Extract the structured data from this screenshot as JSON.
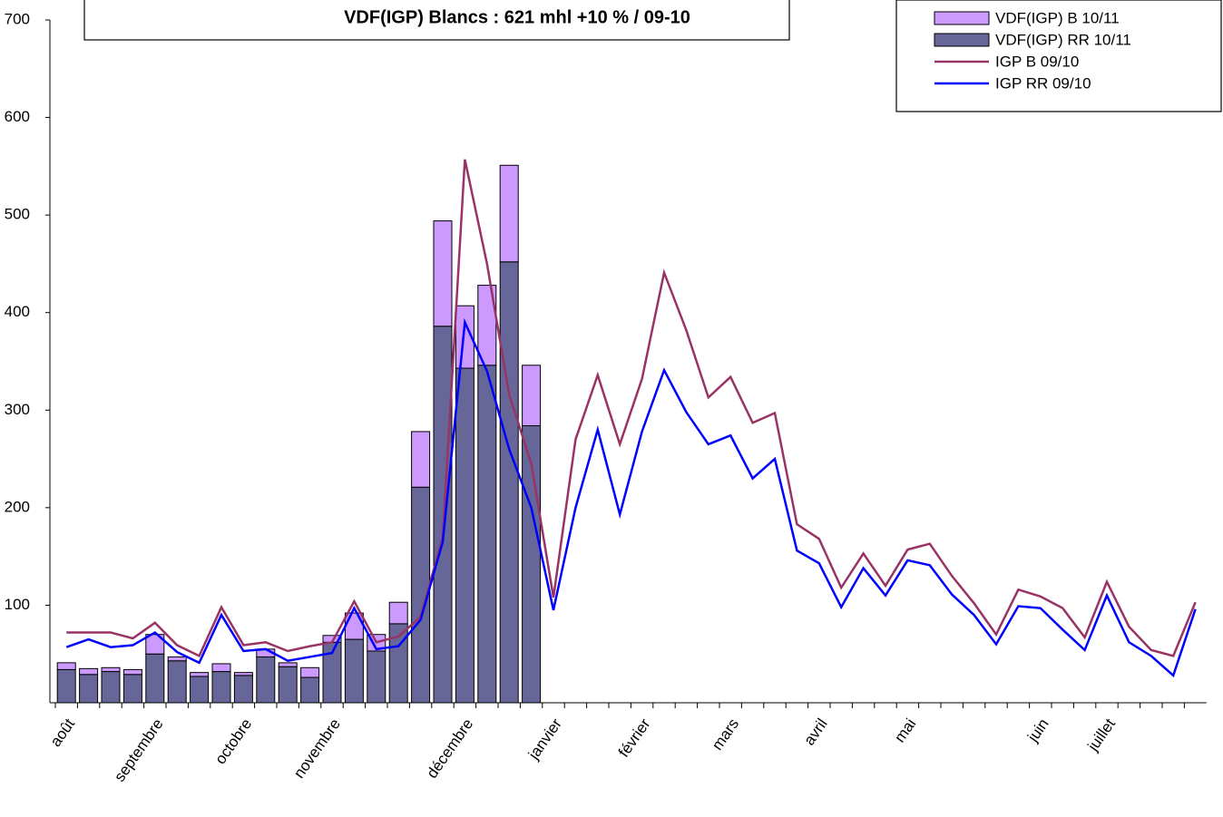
{
  "chart_data": {
    "type": "bar-line",
    "title": "VDF(IGP) Blancs : 621 mhl +10 % / 09-10",
    "categories": [
      "août",
      null,
      null,
      null,
      "septembre",
      null,
      null,
      null,
      "octobre",
      null,
      null,
      null,
      "novembre",
      null,
      null,
      null,
      null,
      null,
      "décembre",
      null,
      null,
      null,
      "janvier",
      null,
      null,
      null,
      "février",
      null,
      null,
      null,
      "mars",
      null,
      null,
      null,
      "avril",
      null,
      null,
      null,
      "mai",
      null,
      null,
      null,
      null,
      null,
      "juin",
      null,
      null,
      "juillet",
      null,
      null,
      null,
      null
    ],
    "series": [
      {
        "name": "VDF(IGP) B 10/11",
        "kind": "bar",
        "color": "#cc99ff",
        "values": [
          7,
          6,
          4,
          5,
          20,
          4,
          4,
          8,
          3,
          8,
          4,
          10,
          7,
          27,
          17,
          22,
          57,
          108,
          64,
          82,
          99,
          62,
          null,
          null,
          null,
          null,
          null,
          null,
          null,
          null,
          null,
          null,
          null,
          null,
          null,
          null,
          null,
          null,
          null,
          null,
          null,
          null,
          null,
          null,
          null,
          null,
          null,
          null,
          null,
          null,
          null,
          null
        ]
      },
      {
        "name": "VDF(IGP) RR 10/11",
        "kind": "bar",
        "color": "#666699",
        "values": [
          34,
          29,
          32,
          29,
          50,
          43,
          27,
          32,
          28,
          47,
          37,
          26,
          62,
          65,
          53,
          81,
          221,
          386,
          343,
          346,
          452,
          284,
          null,
          null,
          null,
          null,
          null,
          null,
          null,
          null,
          null,
          null,
          null,
          null,
          null,
          null,
          null,
          null,
          null,
          null,
          null,
          null,
          null,
          null,
          null,
          null,
          null,
          null,
          null,
          null,
          null,
          null
        ]
      },
      {
        "name": "IGP B 09/10",
        "kind": "line",
        "color": "#993366",
        "values": [
          72,
          72,
          72,
          66,
          82,
          59,
          48,
          98,
          59,
          62,
          53,
          58,
          62,
          104,
          62,
          68,
          88,
          170,
          557,
          450,
          316,
          245,
          108,
          270,
          336,
          265,
          332,
          441,
          382,
          313,
          334,
          287,
          297,
          183,
          168,
          118,
          153,
          120,
          157,
          163,
          130,
          102,
          70,
          116,
          109,
          97,
          67,
          124,
          78,
          54,
          48,
          103
        ]
      },
      {
        "name": "IGP RR 09/10",
        "kind": "line",
        "color": "#0000ff",
        "values": [
          57,
          65,
          57,
          59,
          72,
          52,
          41,
          90,
          53,
          55,
          43,
          47,
          51,
          97,
          55,
          58,
          85,
          165,
          390,
          340,
          260,
          200,
          95,
          200,
          280,
          193,
          278,
          341,
          298,
          265,
          274,
          230,
          250,
          156,
          143,
          98,
          138,
          110,
          146,
          141,
          111,
          90,
          60,
          99,
          97,
          75,
          54,
          110,
          62,
          48,
          28,
          96
        ]
      }
    ],
    "ylim": [
      0,
      700
    ],
    "yticks": [
      100,
      200,
      300,
      400,
      500,
      600,
      700
    ]
  }
}
